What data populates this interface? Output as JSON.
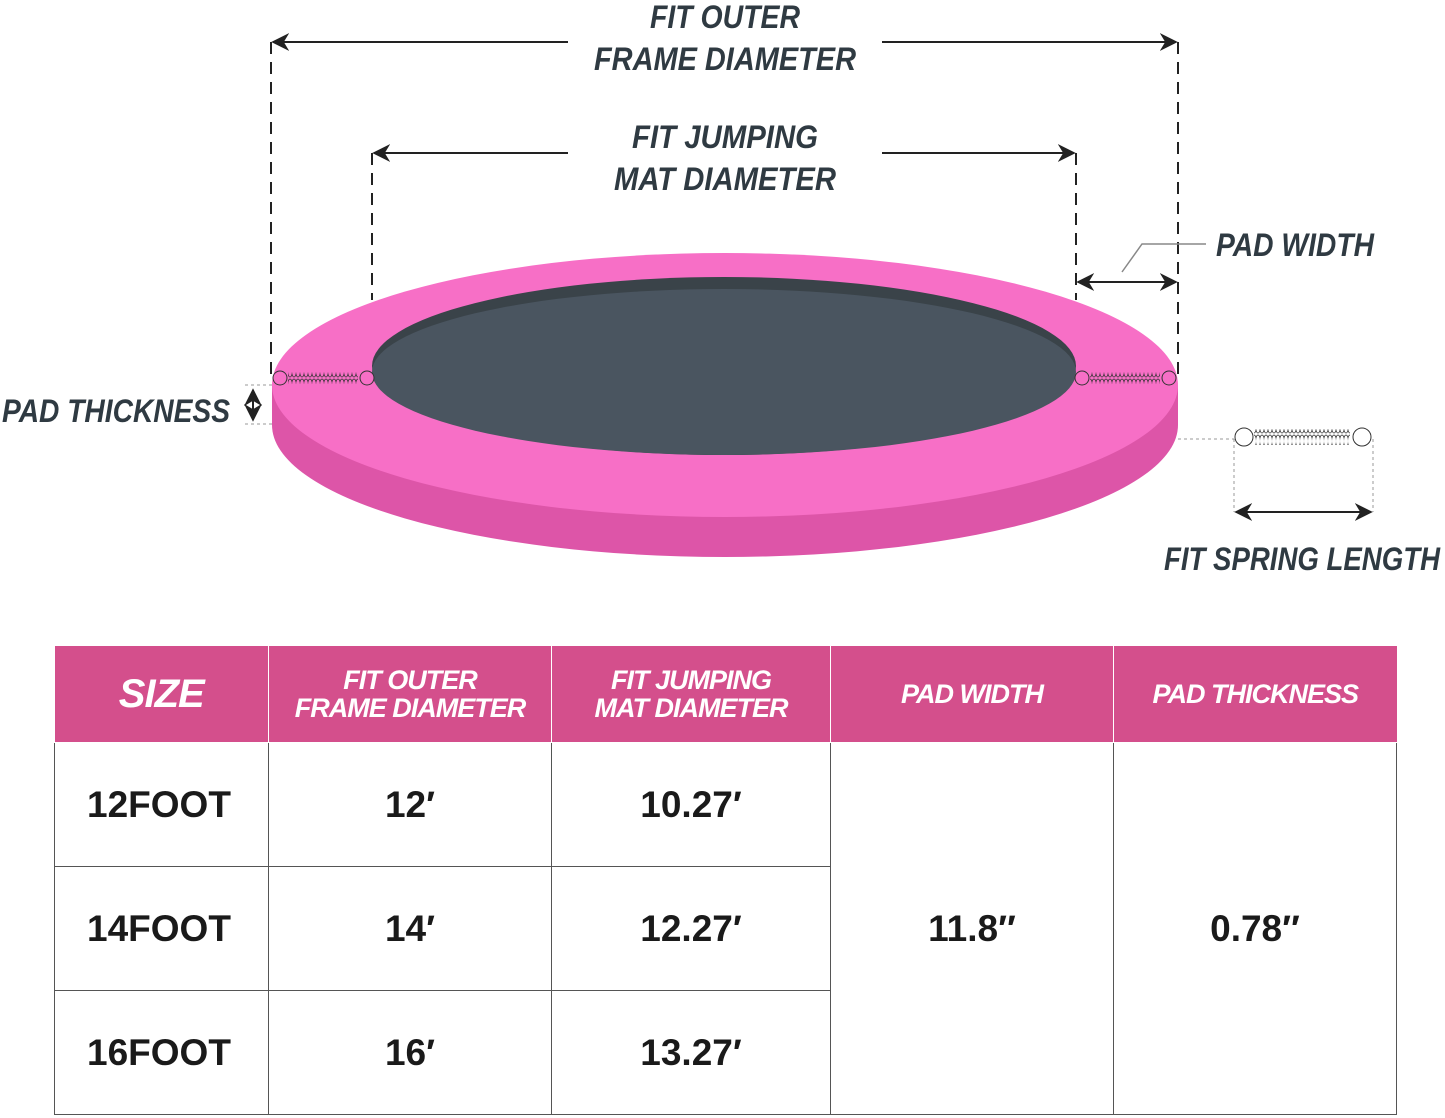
{
  "diagram": {
    "labels": {
      "outer_frame_line1": "FIT OUTER",
      "outer_frame_line2": "FRAME DIAMETER",
      "mat_line1": "FIT JUMPING",
      "mat_line2": "MAT DIAMETER",
      "pad_width": "PAD WIDTH",
      "pad_thickness": "PAD THICKNESS",
      "spring_length": "FIT SPRING LENGTH"
    },
    "colors": {
      "pad_top": "#f76fc6",
      "pad_side": "#dd55a8",
      "mat": "#4a5560",
      "mat_rim": "#3a4349",
      "text": "#2f3a42"
    }
  },
  "table": {
    "header_color": "#d44f8c",
    "headers": [
      "SIZE",
      "FIT OUTER FRAME DIAMETER",
      "FIT JUMPING MAT DIAMETER",
      "PAD WIDTH",
      "PAD THICKNESS"
    ],
    "header_lines": [
      [
        "SIZE"
      ],
      [
        "FIT OUTER",
        "FRAME DIAMETER"
      ],
      [
        "FIT JUMPING",
        "MAT DIAMETER"
      ],
      [
        "PAD WIDTH"
      ],
      [
        "PAD THICKNESS"
      ]
    ],
    "rows": [
      {
        "size": "12FOOT",
        "outer": "12′",
        "mat": "10.27′"
      },
      {
        "size": "14FOOT",
        "outer": "14′",
        "mat": "12.27′"
      },
      {
        "size": "16FOOT",
        "outer": "16′",
        "mat": "13.27′"
      }
    ],
    "pad_width": "11.8″",
    "pad_thickness": "0.78″"
  }
}
